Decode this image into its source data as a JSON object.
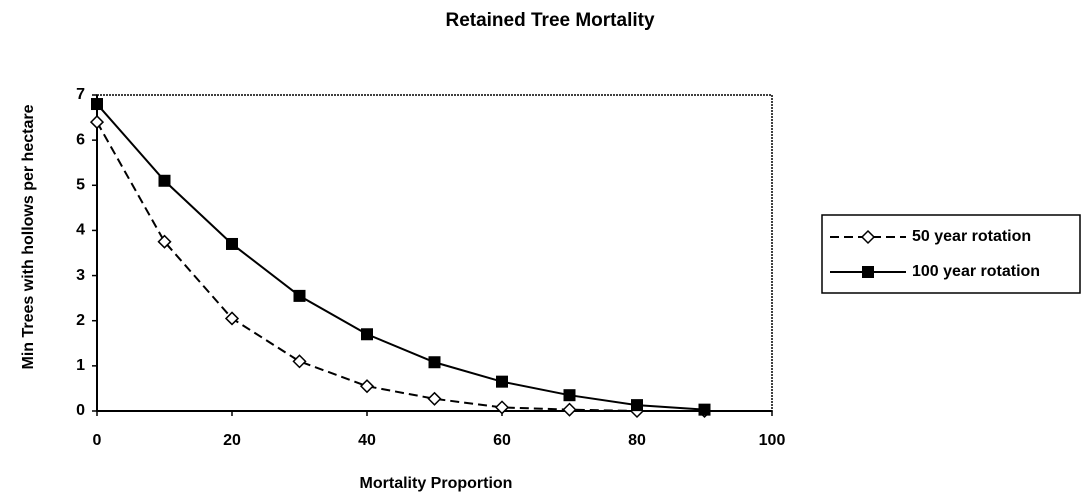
{
  "chart_data": {
    "type": "line",
    "title": "Retained Tree Mortality",
    "xlabel": "Mortality Proportion",
    "ylabel": "Min Trees with hollows per hectare",
    "x": [
      0,
      10,
      20,
      30,
      40,
      50,
      60,
      70,
      80,
      90
    ],
    "series": [
      {
        "name": "50 year rotation",
        "color": "#000000",
        "line_style": "dashed",
        "marker": "diamond",
        "values": [
          6.4,
          3.75,
          2.05,
          1.1,
          0.55,
          0.27,
          0.08,
          0.03,
          0,
          0
        ]
      },
      {
        "name": "100 year rotation",
        "color": "#000000",
        "line_style": "solid",
        "marker": "square",
        "values": [
          6.8,
          5.1,
          3.7,
          2.55,
          1.7,
          1.08,
          0.65,
          0.35,
          0.13,
          0.03
        ]
      }
    ],
    "xlim": [
      0,
      100
    ],
    "xticks": [
      0,
      20,
      40,
      60,
      80,
      100
    ],
    "ylim": [
      0,
      7
    ],
    "yticks": [
      0,
      1,
      2,
      3,
      4,
      5,
      6,
      7
    ],
    "legend": "right"
  }
}
